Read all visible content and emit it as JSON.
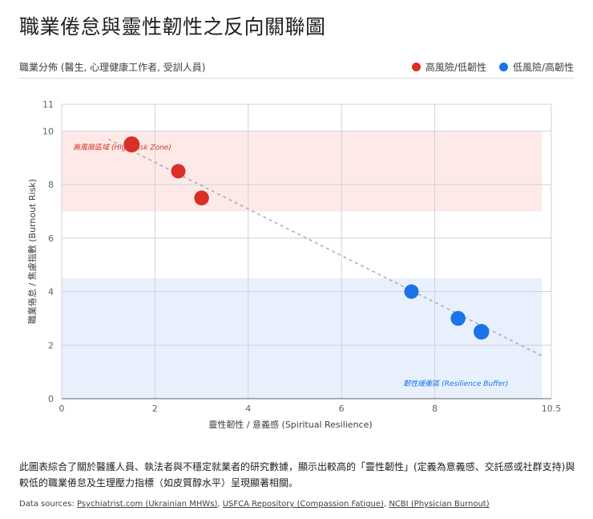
{
  "header": {
    "title": "職業倦怠與靈性韌性之反向關聯圖",
    "subtitle": "職業分佈 (醫生, 心理健康工作者, 受訓人員)"
  },
  "legend": [
    {
      "label": "高風險/低韌性",
      "color": "#d93025"
    },
    {
      "label": "低風險/高韌性",
      "color": "#1a73e8"
    }
  ],
  "chart_data": {
    "type": "scatter",
    "xlabel": "靈性韌性 / 意義感 (Spiritual Resilience)",
    "ylabel": "職業倦怠 / 焦慮指數 (Burnout Risk)",
    "xlim": [
      0,
      10.5
    ],
    "ylim": [
      0,
      11
    ],
    "x_ticks": [
      0,
      2,
      4,
      6,
      8,
      10.5
    ],
    "y_ticks": [
      0,
      2,
      4,
      6,
      8,
      10,
      11
    ],
    "grid": true,
    "zones": [
      {
        "label": "高風險區域 (High Risk Zone)",
        "x": [
          0,
          10.3
        ],
        "y": [
          7,
          10
        ],
        "color": "#fdeae8",
        "text_color": "#d93025"
      },
      {
        "label": "韌性緩衝區 (Resilience Buffer)",
        "x": [
          0,
          10.3
        ],
        "y": [
          0,
          4.5
        ],
        "color": "#e8f0fe",
        "text_color": "#1a73e8"
      }
    ],
    "trendline": {
      "x": [
        1,
        10.3
      ],
      "y": [
        9.7,
        1.6
      ]
    },
    "series": [
      {
        "color": "#d93025",
        "points": [
          {
            "x": 1.5,
            "y": 9.5,
            "size": 1.0
          },
          {
            "x": 2.5,
            "y": 8.5,
            "size": 0.8
          },
          {
            "x": 3.0,
            "y": 7.5,
            "size": 0.85
          }
        ]
      },
      {
        "color": "#1a73e8",
        "points": [
          {
            "x": 7.5,
            "y": 4.0,
            "size": 0.8
          },
          {
            "x": 8.5,
            "y": 3.0,
            "size": 0.85
          },
          {
            "x": 9.0,
            "y": 2.5,
            "size": 0.95
          }
        ]
      }
    ]
  },
  "caption": "此圖表綜合了關於醫護人員、執法者與不穩定就業者的研究數據，顯示出較高的「靈性韌性」(定義為意義感、交託感或社群支持)與較低的職業倦怠及生理壓力指標（如皮質醇水平）呈現顯著相關。",
  "sources": {
    "prefix": "Data sources: ",
    "links": [
      "Psychiatrist.com (Ukrainian MHWs)",
      "USFCA Repository (Compassion Fatigue)",
      "NCBI (Physician Burnout)"
    ]
  }
}
